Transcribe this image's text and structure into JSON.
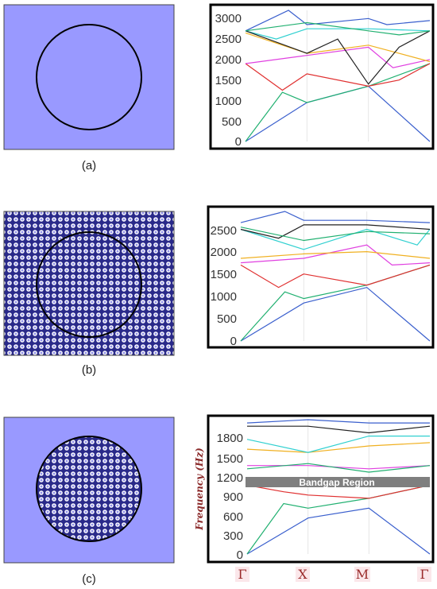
{
  "colors": {
    "unit_cell_fill": "#9999ff",
    "lattice_dark": "#1f1f7a",
    "frame": "#000000",
    "bandgap": "#7f7f7f",
    "symmetry_label": "#9a2a2a",
    "band_colors": [
      "#3a5fcd",
      "#20b070",
      "#e03030",
      "#e040e0",
      "#f0b020",
      "#30d0d0",
      "#222222"
    ]
  },
  "panels": [
    {
      "label": "(a)",
      "unit_cell": {
        "background": "plain",
        "inclusion": "circle",
        "inclusion_fill": "plain"
      },
      "chart": {
        "y_ticks": [
          "3000",
          "2500",
          "2000",
          "1500",
          "1000",
          "500",
          "0"
        ]
      }
    },
    {
      "label": "(b)",
      "unit_cell": {
        "background": "lattice",
        "inclusion": "circle",
        "inclusion_fill": "lattice"
      },
      "chart": {
        "y_ticks": [
          "2500",
          "2000",
          "1500",
          "1000",
          "500",
          "0"
        ]
      }
    },
    {
      "label": "(c)",
      "unit_cell": {
        "background": "plain",
        "inclusion": "circle",
        "inclusion_fill": "lattice"
      },
      "chart": {
        "y_ticks": [
          "1800",
          "1500",
          "1200",
          "900",
          "600",
          "300",
          "0"
        ],
        "ylabel": "Frequency (Hz)",
        "bandgap_label": "Bandgap Region",
        "x_ticks": [
          "Γ",
          "X",
          "M",
          "Γ"
        ]
      }
    }
  ],
  "chart_data": [
    {
      "type": "line",
      "x": [
        "Γ",
        "X",
        "M",
        "Γ"
      ],
      "ylim": [
        0,
        3200
      ],
      "series": [
        {
          "values": [
            [
              0,
              0
            ],
            [
              1,
              950
            ],
            [
              2,
              1350
            ],
            [
              3,
              0
            ]
          ]
        },
        {
          "values": [
            [
              0,
              0
            ],
            [
              0.6,
              1200
            ],
            [
              1,
              950
            ],
            [
              2,
              1350
            ],
            [
              3,
              1900
            ]
          ]
        },
        {
          "values": [
            [
              0,
              1900
            ],
            [
              0.6,
              1250
            ],
            [
              1,
              1650
            ],
            [
              2,
              1350
            ],
            [
              2.5,
              1500
            ],
            [
              3,
              1900
            ]
          ]
        },
        {
          "values": [
            [
              0,
              1900
            ],
            [
              1,
              2100
            ],
            [
              2,
              2300
            ],
            [
              2.4,
              1800
            ],
            [
              3,
              2000
            ]
          ]
        },
        {
          "values": [
            [
              0,
              2650
            ],
            [
              1,
              2150
            ],
            [
              2,
              2350
            ],
            [
              3,
              1950
            ]
          ]
        },
        {
          "values": [
            [
              0,
              2700
            ],
            [
              0.5,
              2500
            ],
            [
              1,
              2750
            ],
            [
              2,
              2750
            ],
            [
              3,
              2700
            ]
          ]
        },
        {
          "values": [
            [
              0,
              2700
            ],
            [
              1,
              2150
            ],
            [
              1.5,
              2500
            ],
            [
              2,
              1400
            ],
            [
              2.5,
              2300
            ],
            [
              3,
              2700
            ]
          ]
        },
        {
          "values": [
            [
              0,
              2700
            ],
            [
              0.7,
              3200
            ],
            [
              1,
              2850
            ],
            [
              2,
              3000
            ],
            [
              2.3,
              2850
            ],
            [
              3,
              2950
            ]
          ]
        },
        {
          "values": [
            [
              0,
              2700
            ],
            [
              1,
              2900
            ],
            [
              2,
              2700
            ],
            [
              2.5,
              2600
            ],
            [
              3,
              2700
            ]
          ]
        }
      ]
    },
    {
      "type": "line",
      "x": [
        "Γ",
        "X",
        "M",
        "Γ"
      ],
      "ylim": [
        0,
        2900
      ],
      "series": [
        {
          "values": [
            [
              0,
              0
            ],
            [
              1,
              850
            ],
            [
              2,
              1200
            ],
            [
              3,
              0
            ]
          ]
        },
        {
          "values": [
            [
              0,
              0
            ],
            [
              0.7,
              1100
            ],
            [
              1,
              950
            ],
            [
              2,
              1250
            ],
            [
              3,
              1700
            ]
          ]
        },
        {
          "values": [
            [
              0,
              1700
            ],
            [
              0.6,
              1200
            ],
            [
              1,
              1500
            ],
            [
              2,
              1250
            ],
            [
              3,
              1700
            ]
          ]
        },
        {
          "values": [
            [
              0,
              1750
            ],
            [
              1,
              1850
            ],
            [
              2,
              2150
            ],
            [
              2.4,
              1700
            ],
            [
              3,
              1750
            ]
          ]
        },
        {
          "values": [
            [
              0,
              1850
            ],
            [
              1,
              1950
            ],
            [
              2,
              2000
            ],
            [
              3,
              1850
            ]
          ]
        },
        {
          "values": [
            [
              0,
              2500
            ],
            [
              1,
              2050
            ],
            [
              2,
              2500
            ],
            [
              2.8,
              2150
            ],
            [
              3,
              2500
            ]
          ]
        },
        {
          "values": [
            [
              0,
              2500
            ],
            [
              0.6,
              2300
            ],
            [
              1,
              2600
            ],
            [
              2,
              2600
            ],
            [
              3,
              2500
            ]
          ]
        },
        {
          "values": [
            [
              0,
              2650
            ],
            [
              0.7,
              2900
            ],
            [
              1,
              2700
            ],
            [
              2,
              2700
            ],
            [
              3,
              2650
            ]
          ]
        },
        {
          "values": [
            [
              0,
              2550
            ],
            [
              1,
              2250
            ],
            [
              2,
              2450
            ],
            [
              3,
              2400
            ]
          ]
        }
      ]
    },
    {
      "type": "line",
      "x": [
        "Γ",
        "X",
        "M",
        "Γ"
      ],
      "ylim": [
        0,
        2050
      ],
      "ylabel": "Frequency (Hz)",
      "bandgap": {
        "label": "Bandgap Region",
        "range": [
          1100,
          1230
        ]
      },
      "series": [
        {
          "values": [
            [
              0,
              0
            ],
            [
              1,
              550
            ],
            [
              2,
              700
            ],
            [
              3,
              0
            ]
          ]
        },
        {
          "values": [
            [
              0,
              0
            ],
            [
              0.6,
              770
            ],
            [
              1,
              700
            ],
            [
              2,
              850
            ],
            [
              3,
              1050
            ]
          ]
        },
        {
          "values": [
            [
              0,
              1050
            ],
            [
              0.6,
              950
            ],
            [
              1,
              900
            ],
            [
              2,
              850
            ],
            [
              3,
              1050
            ]
          ]
        },
        {
          "values": [
            [
              0,
              1350
            ],
            [
              1,
              1350
            ],
            [
              2,
              1300
            ],
            [
              3,
              1350
            ]
          ]
        },
        {
          "values": [
            [
              0,
              1600
            ],
            [
              1,
              1550
            ],
            [
              2,
              1650
            ],
            [
              3,
              1700
            ]
          ]
        },
        {
          "values": [
            [
              0,
              1750
            ],
            [
              1,
              1550
            ],
            [
              2,
              1800
            ],
            [
              3,
              1800
            ]
          ]
        },
        {
          "values": [
            [
              0,
              1950
            ],
            [
              1,
              1950
            ],
            [
              2,
              1850
            ],
            [
              3,
              1950
            ]
          ]
        },
        {
          "values": [
            [
              0,
              2000
            ],
            [
              1,
              2050
            ],
            [
              2,
              2000
            ],
            [
              3,
              2000
            ]
          ]
        },
        {
          "values": [
            [
              0,
              1300
            ],
            [
              1,
              1380
            ],
            [
              2,
              1250
            ],
            [
              3,
              1350
            ]
          ]
        }
      ]
    }
  ]
}
